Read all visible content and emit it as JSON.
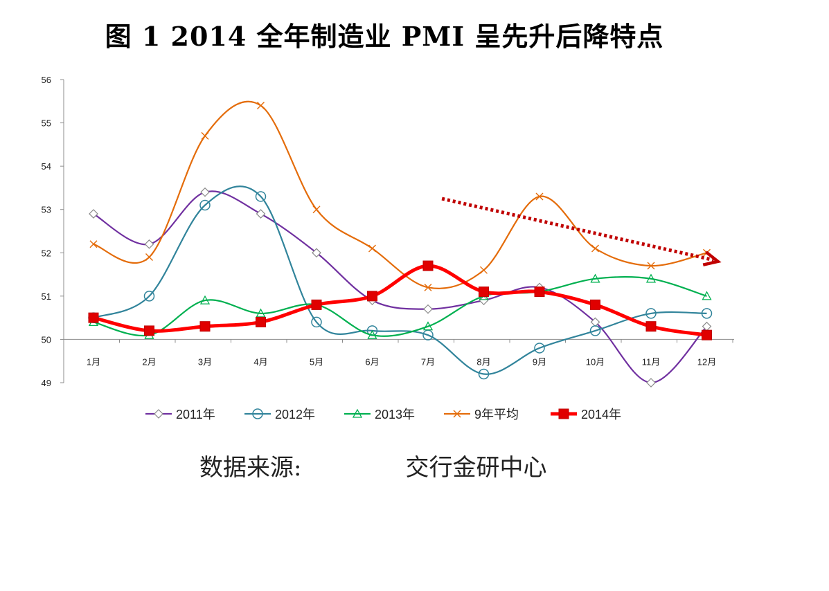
{
  "chart_data": {
    "type": "line",
    "title": "图 1 2014 全年制造业 PMI 呈先升后降特点",
    "source_label": "数据来源:",
    "source_org": "交行金研中心",
    "categories": [
      "1月",
      "2月",
      "3月",
      "4月",
      "5月",
      "6月",
      "7月",
      "8月",
      "9月",
      "10月",
      "11月",
      "12月"
    ],
    "ylim": [
      49,
      56
    ],
    "yticks": [
      49,
      50,
      51,
      52,
      53,
      54,
      55,
      56
    ],
    "x_axis_crosses_at": 50,
    "xlabel": "",
    "ylabel": "",
    "grid": false,
    "legend_position": "bottom",
    "series": [
      {
        "name": "2011年",
        "color": "#7030a0",
        "marker": "diamond",
        "values": [
          52.9,
          52.2,
          53.4,
          52.9,
          52.0,
          50.9,
          50.7,
          50.9,
          51.2,
          50.4,
          49.0,
          50.3
        ]
      },
      {
        "name": "2012年",
        "color": "#31849b",
        "marker": "circle",
        "values": [
          50.5,
          51.0,
          53.1,
          53.3,
          50.4,
          50.2,
          50.1,
          49.2,
          49.8,
          50.2,
          50.6,
          50.6
        ]
      },
      {
        "name": "2013年",
        "color": "#00b050",
        "marker": "triangle",
        "values": [
          50.4,
          50.1,
          50.9,
          50.6,
          50.8,
          50.1,
          50.3,
          51.0,
          51.1,
          51.4,
          51.4,
          51.0
        ]
      },
      {
        "name": "9年平均",
        "color": "#e46c0a",
        "marker": "x",
        "values": [
          52.2,
          51.9,
          54.7,
          55.4,
          53.0,
          52.1,
          51.2,
          51.6,
          53.3,
          52.1,
          51.7,
          52.0
        ]
      },
      {
        "name": "2014年",
        "color": "#ff0000",
        "marker": "square",
        "bold": true,
        "values": [
          50.5,
          50.2,
          50.3,
          50.4,
          50.8,
          51.0,
          51.7,
          51.1,
          51.1,
          50.8,
          50.3,
          50.1
        ]
      }
    ],
    "annotations": [
      {
        "type": "trend-arrow",
        "style": "dotted",
        "color": "#c00000",
        "from": {
          "x": 6.25,
          "y": 53.25
        },
        "to": {
          "x": 11.2,
          "y": 51.8
        }
      }
    ]
  }
}
